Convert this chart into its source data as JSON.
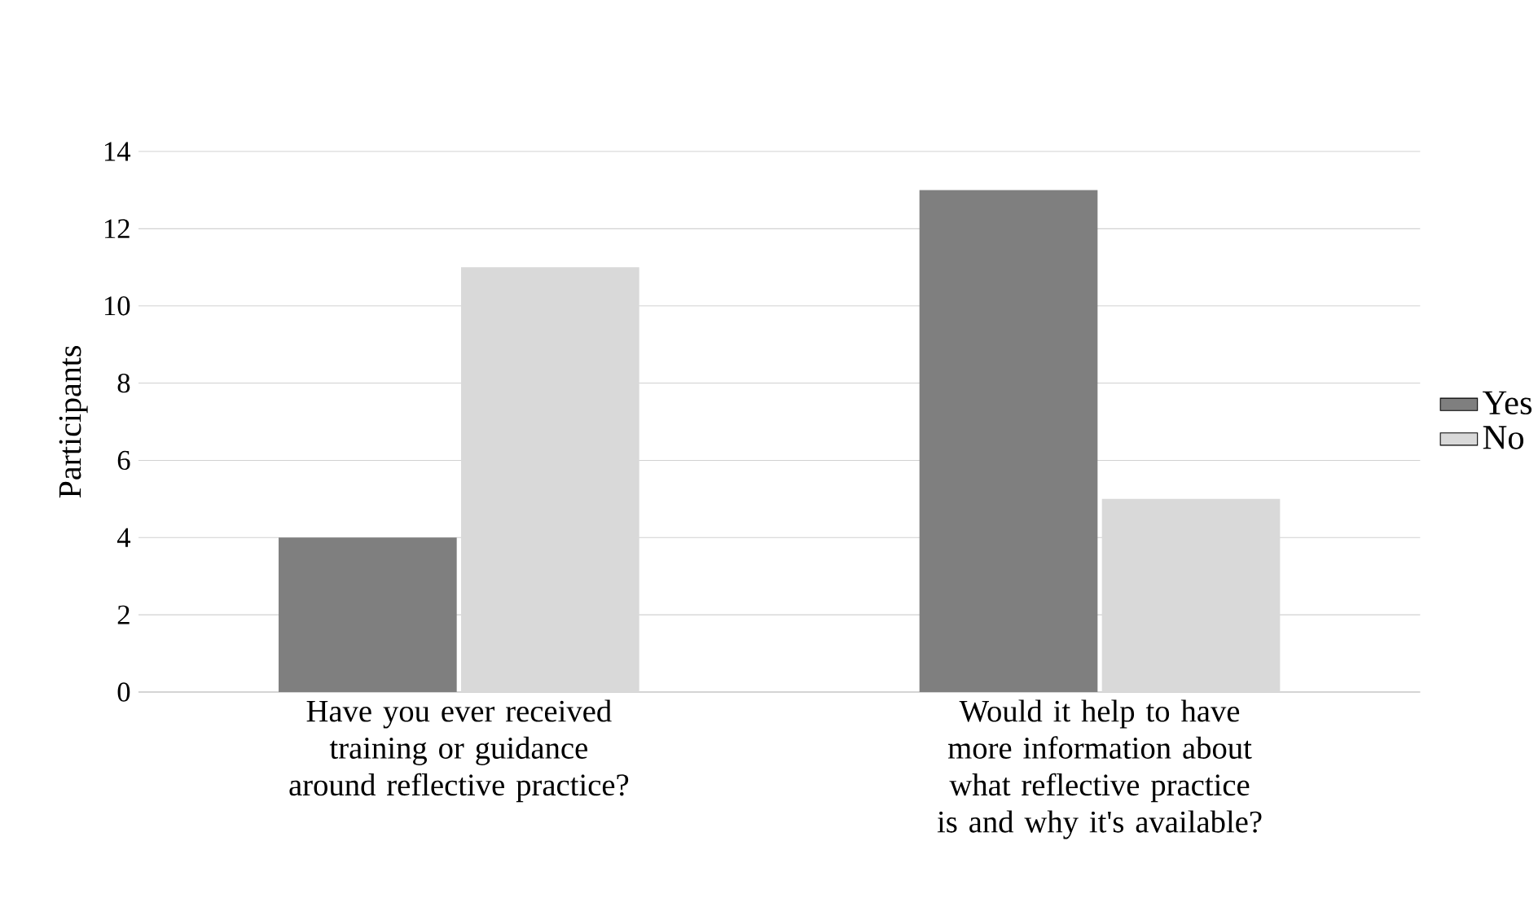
{
  "chart_data": {
    "type": "bar",
    "ylabel": "Participants",
    "categories": [
      "Have you ever received training or guidance around reflective practice?",
      "Would it help to have more information about what reflective practice is and why it's available?"
    ],
    "series": [
      {
        "name": "Yes",
        "color": "#7f7f7f",
        "values": [
          4,
          13
        ]
      },
      {
        "name": "No",
        "color": "#d9d9d9",
        "values": [
          11,
          5
        ]
      }
    ],
    "ylim": [
      0,
      14
    ],
    "yticks": [
      0,
      2,
      4,
      6,
      8,
      10,
      12,
      14
    ],
    "grid": "y",
    "legend": "right"
  }
}
